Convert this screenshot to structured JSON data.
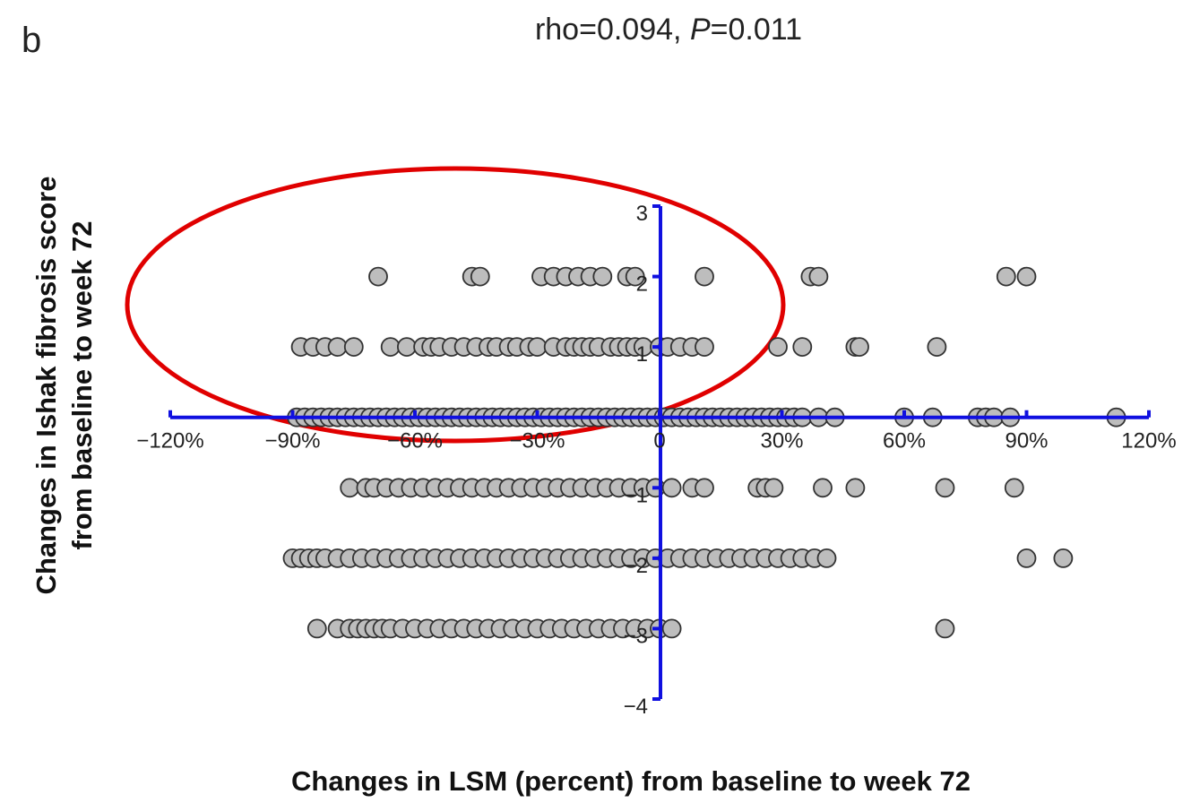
{
  "panel_letter": "b",
  "chart_data": {
    "type": "scatter",
    "title": "rho=0.094, P=0.011",
    "title_parts": {
      "rho": "rho=0.094, ",
      "p_letter": "P",
      "p_value": "=0.011"
    },
    "xlabel": "Changes in LSM (percent) from baseline to week 72",
    "ylabel_lines": [
      "Changes in Ishak fibrosis score",
      "from baseline to week 72"
    ],
    "xlim": [
      -120,
      120
    ],
    "ylim": [
      -4,
      3
    ],
    "x_ticks": [
      {
        "value": -120,
        "label": "−120%"
      },
      {
        "value": -90,
        "label": "−90%"
      },
      {
        "value": -60,
        "label": "−60%"
      },
      {
        "value": -30,
        "label": "−30%"
      },
      {
        "value": 0,
        "label": "0"
      },
      {
        "value": 30,
        "label": "30%"
      },
      {
        "value": 60,
        "label": "60%"
      },
      {
        "value": 90,
        "label": "90%"
      },
      {
        "value": 120,
        "label": "120%"
      }
    ],
    "y_ticks": [
      {
        "value": 3,
        "label": "3"
      },
      {
        "value": 2,
        "label": "2"
      },
      {
        "value": 1,
        "label": "1"
      },
      {
        "value": -1,
        "label": "−1"
      },
      {
        "value": -2,
        "label": "−2"
      },
      {
        "value": -3,
        "label": "−3"
      },
      {
        "value": -4,
        "label": "−4"
      }
    ],
    "grid": false,
    "colors": {
      "axis": "#1010e0",
      "marker_fill": "#bdbdbd",
      "marker_edge": "#333333",
      "annotation": "#e00000"
    },
    "annotation": {
      "shape": "ellipse",
      "encloses": "points with positive score change (+1, +2) and negative LSM change"
    },
    "series": [
      {
        "y": 2,
        "x": [
          -69,
          -46,
          -44,
          -29,
          -26,
          -23,
          -20,
          -17,
          -14,
          -8,
          -6,
          11,
          37,
          39,
          85,
          90
        ]
      },
      {
        "y": 1,
        "x": [
          -88,
          -85,
          -82,
          -79,
          -75,
          -66,
          -62,
          -58,
          -56,
          -54,
          -51,
          -48,
          -45,
          -42,
          -40,
          -37,
          -35,
          -32,
          -30,
          -26,
          -23,
          -21,
          -19,
          -17,
          -15,
          -12,
          -10,
          -8,
          -6,
          -4,
          0,
          2,
          5,
          8,
          11,
          29,
          35,
          48,
          49,
          68
        ]
      },
      {
        "y": 0,
        "x": [
          -89,
          -87,
          -85,
          -83,
          -81,
          -79,
          -77,
          -75,
          -73,
          -71,
          -69,
          -67,
          -65,
          -63,
          -61,
          -59,
          -57,
          -55,
          -53,
          -51,
          -49,
          -47,
          -45,
          -43,
          -41,
          -39,
          -37,
          -35,
          -33,
          -31,
          -29,
          -27,
          -25,
          -23,
          -21,
          -19,
          -17,
          -15,
          -13,
          -11,
          -9,
          -7,
          -5,
          -3,
          -1,
          1,
          3,
          5,
          7,
          9,
          11,
          13,
          15,
          17,
          19,
          21,
          23,
          25,
          27,
          29,
          31,
          33,
          35,
          39,
          43,
          60,
          67,
          78,
          80,
          82,
          86,
          112
        ]
      },
      {
        "y": -1,
        "x": [
          -76,
          -72,
          -70,
          -67,
          -64,
          -61,
          -58,
          -55,
          -52,
          -49,
          -46,
          -43,
          -40,
          -37,
          -34,
          -31,
          -28,
          -25,
          -22,
          -19,
          -16,
          -13,
          -10,
          -7,
          -4,
          -1,
          3,
          8,
          11,
          24,
          26,
          28,
          40,
          48,
          70,
          87
        ]
      },
      {
        "y": -2,
        "x": [
          -90,
          -88,
          -86,
          -84,
          -82,
          -79,
          -76,
          -73,
          -70,
          -67,
          -64,
          -61,
          -58,
          -55,
          -52,
          -49,
          -46,
          -43,
          -40,
          -37,
          -34,
          -31,
          -28,
          -25,
          -22,
          -19,
          -16,
          -13,
          -10,
          -7,
          -4,
          -1,
          2,
          5,
          8,
          11,
          14,
          17,
          20,
          23,
          26,
          29,
          32,
          35,
          38,
          41,
          90,
          99
        ]
      },
      {
        "y": -3,
        "x": [
          -84,
          -79,
          -76,
          -74,
          -72,
          -70,
          -68,
          -66,
          -63,
          -60,
          -57,
          -54,
          -51,
          -48,
          -45,
          -42,
          -39,
          -36,
          -33,
          -30,
          -27,
          -24,
          -21,
          -18,
          -15,
          -12,
          -9,
          -6,
          -3,
          0,
          3,
          70
        ]
      }
    ]
  }
}
